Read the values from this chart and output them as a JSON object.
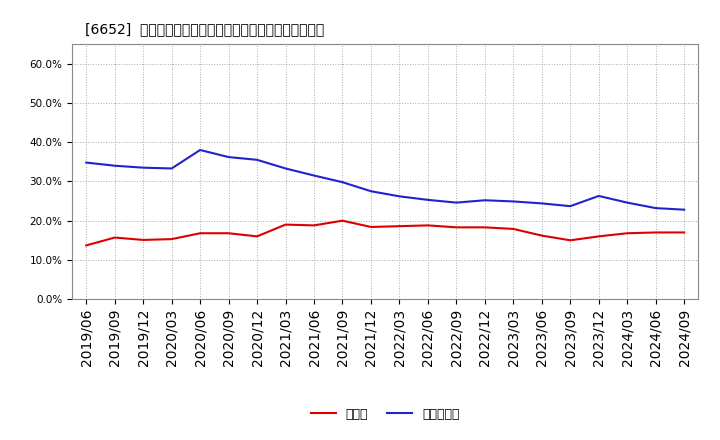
{
  "title": "[6652]  現預金、有利子負債の総資産に対する比率の推移",
  "x_labels": [
    "2019/06",
    "2019/09",
    "2019/12",
    "2020/03",
    "2020/06",
    "2020/09",
    "2020/12",
    "2021/03",
    "2021/06",
    "2021/09",
    "2021/12",
    "2022/03",
    "2022/06",
    "2022/09",
    "2022/12",
    "2023/03",
    "2023/06",
    "2023/09",
    "2023/12",
    "2024/03",
    "2024/06",
    "2024/09"
  ],
  "cash": [
    0.137,
    0.157,
    0.151,
    0.153,
    0.168,
    0.168,
    0.16,
    0.19,
    0.188,
    0.2,
    0.184,
    0.186,
    0.188,
    0.183,
    0.183,
    0.179,
    0.162,
    0.15,
    0.16,
    0.168,
    0.17,
    0.17
  ],
  "debt": [
    0.348,
    0.34,
    0.335,
    0.333,
    0.38,
    0.362,
    0.355,
    0.333,
    0.315,
    0.298,
    0.275,
    0.262,
    0.253,
    0.246,
    0.252,
    0.249,
    0.244,
    0.237,
    0.263,
    0.246,
    0.232,
    0.228
  ],
  "cash_color": "#dd0000",
  "debt_color": "#2222cc",
  "legend_cash": "現預金",
  "legend_debt": "有利子負債",
  "ylim": [
    0.0,
    0.65
  ],
  "yticks": [
    0.0,
    0.1,
    0.2,
    0.3,
    0.4,
    0.5,
    0.6
  ],
  "bg_color": "#ffffff",
  "plot_bg_color": "#ffffff",
  "grid_color": "#aaaaaa",
  "title_fontsize": 12,
  "tick_fontsize": 7.5,
  "legend_fontsize": 9
}
